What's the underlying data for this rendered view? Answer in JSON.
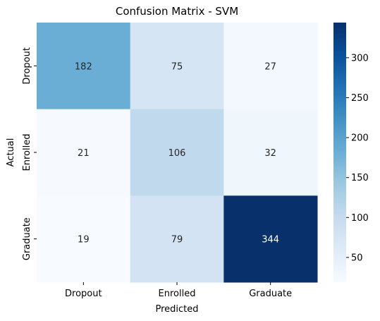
{
  "chart_data": {
    "type": "heatmap",
    "title": "Confusion Matrix - SVM",
    "xlabel": "Predicted",
    "ylabel": "Actual",
    "x_categories": [
      "Dropout",
      "Enrolled",
      "Graduate"
    ],
    "y_categories": [
      "Dropout",
      "Enrolled",
      "Graduate"
    ],
    "values": [
      [
        182,
        75,
        27
      ],
      [
        21,
        106,
        32
      ],
      [
        19,
        79,
        344
      ]
    ],
    "colormap": "Blues",
    "color_range": [
      19,
      344
    ],
    "colorbar_ticks": [
      50,
      100,
      150,
      200,
      250,
      300
    ],
    "grid": false,
    "colorbar_position": "right"
  }
}
